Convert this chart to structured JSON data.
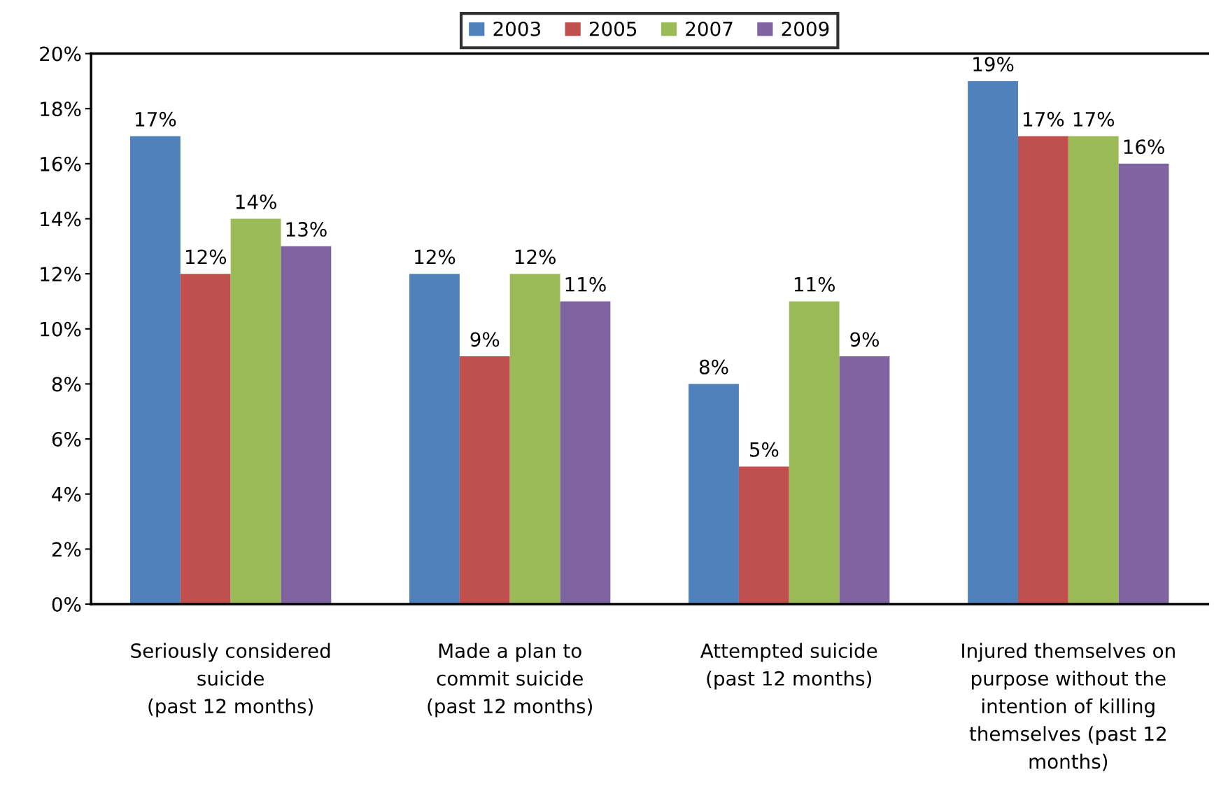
{
  "chart_data": {
    "type": "bar",
    "categories": [
      "Seriously considered\nsuicide\n(past 12 months)",
      "Made a plan to\ncommit suicide\n(past 12 months)",
      "Attempted suicide\n(past 12 months)",
      "Injured themselves on\npurpose without the\nintention of killing\nthemselves (past 12\nmonths)"
    ],
    "series": [
      {
        "name": "2003",
        "color": "#4f81bd",
        "values": [
          17,
          12,
          8,
          19
        ],
        "value_labels": [
          "17%",
          "12%",
          "8%",
          "19%"
        ]
      },
      {
        "name": "2005",
        "color": "#c0504d",
        "values": [
          12,
          9,
          5,
          17
        ],
        "value_labels": [
          "12%",
          "9%",
          "5%",
          "17%"
        ]
      },
      {
        "name": "2007",
        "color": "#9bbb59",
        "values": [
          14,
          12,
          11,
          17
        ],
        "value_labels": [
          "14%",
          "12%",
          "11%",
          "17%"
        ]
      },
      {
        "name": "2009",
        "color": "#8064a2",
        "values": [
          13,
          11,
          9,
          16
        ],
        "value_labels": [
          "13%",
          "11%",
          "9%",
          "16%"
        ]
      }
    ],
    "ylim": [
      0,
      20
    ],
    "yticks": [
      {
        "value": 0,
        "label": "0%"
      },
      {
        "value": 2,
        "label": "2%"
      },
      {
        "value": 4,
        "label": "4%"
      },
      {
        "value": 6,
        "label": "6%"
      },
      {
        "value": 8,
        "label": "8%"
      },
      {
        "value": 10,
        "label": "10%"
      },
      {
        "value": 12,
        "label": "12%"
      },
      {
        "value": 14,
        "label": "14%"
      },
      {
        "value": 16,
        "label": "16%"
      },
      {
        "value": 18,
        "label": "18%"
      },
      {
        "value": 20,
        "label": "20%"
      }
    ],
    "grid": false,
    "legend": "top"
  }
}
